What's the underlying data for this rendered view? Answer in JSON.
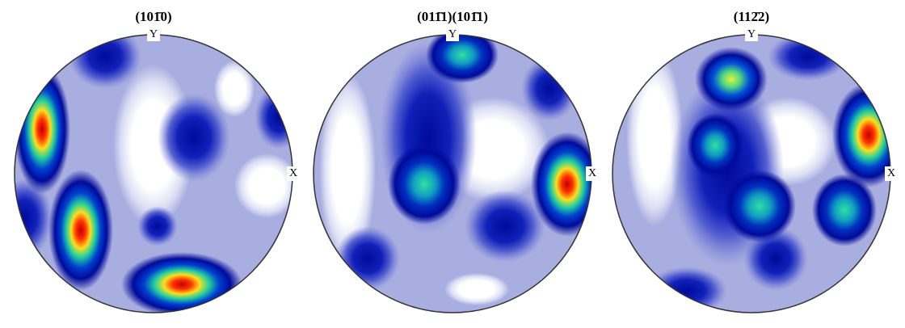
{
  "figures": [
    {
      "title": "(101̄0)",
      "y_label": "Y",
      "x_label": "X"
    },
    {
      "title": "(011̄1)(101̄1)",
      "y_label": "Y",
      "x_label": "X"
    },
    {
      "title": "(112̄2)",
      "y_label": "Y",
      "x_label": "X"
    }
  ]
}
